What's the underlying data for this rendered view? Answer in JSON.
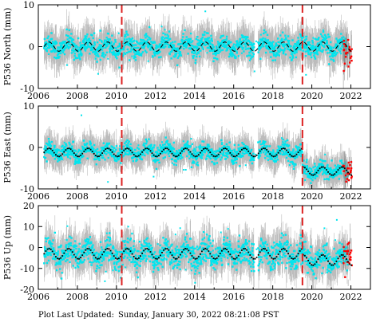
{
  "footer": {
    "label": "Plot Last Updated:",
    "timestamp": "Sunday, January 30, 2022 08:21:08 PST"
  },
  "colors": {
    "observed": "#00e5ee",
    "error_bar": "#b0b0b0",
    "model": "#000000",
    "recent": "#ff0000",
    "event_line": "#dd2222"
  },
  "chart_data": [
    {
      "type": "scatter",
      "ylabel": "P536 North (mm)",
      "xlim": [
        2006,
        2023
      ],
      "ylim": [
        -10,
        10
      ],
      "xticks": [
        2006,
        2008,
        2010,
        2012,
        2014,
        2016,
        2018,
        2020,
        2022
      ],
      "yticks": [
        -10,
        0,
        10
      ],
      "event_lines": [
        2010.27,
        2019.52
      ],
      "series": [
        {
          "name": "",
          "x_range": [
            2006.3,
            2021.85
          ],
          "spread": 2.2,
          "errorbar": 3.5
        },
        {
          "name": "",
          "x_range": [
            2021.6,
            2022.05
          ],
          "y_center": -1.5,
          "spread": 2.0
        },
        {
          "name": "",
          "model": "annual",
          "offset": 0.0,
          "amplitude": 1.1,
          "break_at": 2019.52,
          "break_offset": 0.0,
          "line_style": "dashed"
        }
      ]
    },
    {
      "type": "scatter",
      "ylabel": "P536 East (mm)",
      "xlim": [
        2006,
        2023
      ],
      "ylim": [
        -10,
        10
      ],
      "xticks": [
        2006,
        2008,
        2010,
        2012,
        2014,
        2016,
        2018,
        2020,
        2022
      ],
      "yticks": [
        -10,
        0,
        10
      ],
      "event_lines": [
        2010.27,
        2019.52
      ],
      "series": [
        {
          "name": "",
          "x_range": [
            2006.3,
            2021.85
          ],
          "spread": 1.8,
          "errorbar": 3.0
        },
        {
          "name": "",
          "x_range": [
            2021.6,
            2022.05
          ],
          "y_center": -5.5,
          "spread": 1.5
        },
        {
          "name": "",
          "model": "annual",
          "offset": -1.2,
          "amplitude": 1.0,
          "break_at": 2019.52,
          "break_offset": -4.5,
          "line_style": "dotted"
        }
      ]
    },
    {
      "type": "scatter",
      "ylabel": "P536 Up (mm)",
      "xlim": [
        2006,
        2023
      ],
      "ylim": [
        -20,
        20
      ],
      "xticks": [
        2006,
        2008,
        2010,
        2012,
        2014,
        2016,
        2018,
        2020,
        2022
      ],
      "yticks": [
        -20,
        -10,
        0,
        10,
        20
      ],
      "event_lines": [
        2010.27,
        2019.52
      ],
      "series": [
        {
          "name": "",
          "x_range": [
            2006.3,
            2021.85
          ],
          "spread": 5.5,
          "errorbar": 7.0
        },
        {
          "name": "",
          "x_range": [
            2021.6,
            2022.05
          ],
          "y_center": -4.0,
          "spread": 5.0
        },
        {
          "name": "",
          "model": "annual",
          "offset": -3.0,
          "amplitude": 2.5,
          "break_at": 2019.52,
          "break_offset": -3.0,
          "line_style": "dotted"
        }
      ]
    }
  ]
}
